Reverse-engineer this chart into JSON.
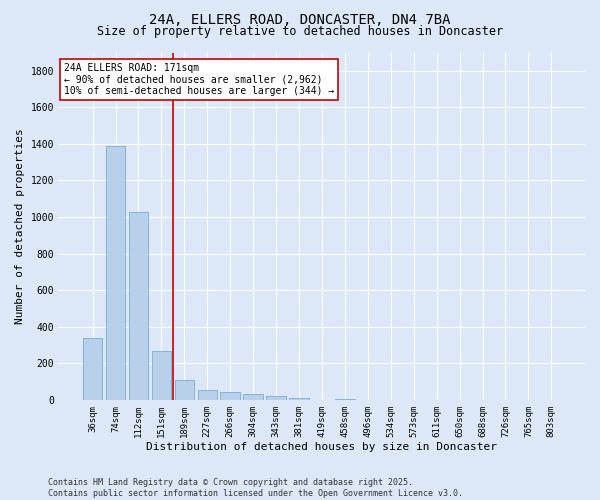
{
  "title_line1": "24A, ELLERS ROAD, DONCASTER, DN4 7BA",
  "title_line2": "Size of property relative to detached houses in Doncaster",
  "xlabel": "Distribution of detached houses by size in Doncaster",
  "ylabel": "Number of detached properties",
  "categories": [
    "36sqm",
    "74sqm",
    "112sqm",
    "151sqm",
    "189sqm",
    "227sqm",
    "266sqm",
    "304sqm",
    "343sqm",
    "381sqm",
    "419sqm",
    "458sqm",
    "496sqm",
    "534sqm",
    "573sqm",
    "611sqm",
    "650sqm",
    "688sqm",
    "726sqm",
    "765sqm",
    "803sqm"
  ],
  "values": [
    340,
    1390,
    1030,
    265,
    110,
    55,
    45,
    30,
    20,
    10,
    0,
    5,
    0,
    0,
    0,
    0,
    0,
    0,
    0,
    0,
    0
  ],
  "bar_color": "#b8d0ea",
  "bar_edge_color": "#7aadd4",
  "vline_x": 3.5,
  "vline_color": "#cc0000",
  "annotation_text": "24A ELLERS ROAD: 171sqm\n← 90% of detached houses are smaller (2,962)\n10% of semi-detached houses are larger (344) →",
  "annotation_box_color": "white",
  "annotation_box_edge": "#cc0000",
  "ylim": [
    0,
    1900
  ],
  "yticks": [
    0,
    200,
    400,
    600,
    800,
    1000,
    1200,
    1400,
    1600,
    1800
  ],
  "background_color": "#dce8f8",
  "plot_bg_color": "#dce8f8",
  "footer_text": "Contains HM Land Registry data © Crown copyright and database right 2025.\nContains public sector information licensed under the Open Government Licence v3.0.",
  "title_fontsize": 10,
  "subtitle_fontsize": 8.5,
  "tick_fontsize": 6.5,
  "label_fontsize": 8,
  "annot_fontsize": 7,
  "footer_fontsize": 6
}
